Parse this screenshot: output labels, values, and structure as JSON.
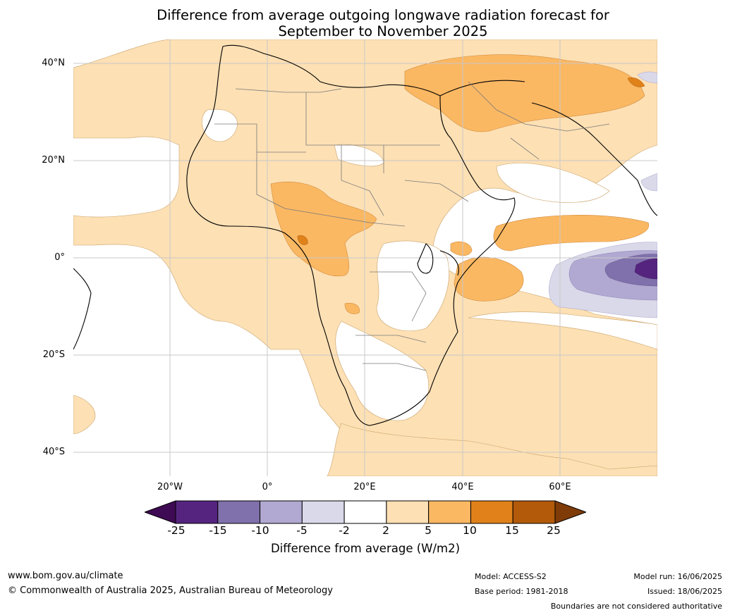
{
  "title_line1": "Difference from average outgoing longwave radiation forecast for",
  "title_line2": "September to November 2025",
  "lat_labels": [
    "40°N",
    "20°N",
    "0°",
    "20°S",
    "40°S"
  ],
  "lon_labels": [
    "20°W",
    "0°",
    "20°E",
    "40°E",
    "60°E"
  ],
  "colorbar": {
    "label": "Difference from average (W/m2)",
    "ticks": [
      "-25",
      "-15",
      "-10",
      "-5",
      "-2",
      "2",
      "5",
      "10",
      "15",
      "25"
    ],
    "colors": [
      "#3f0a54",
      "#55247f",
      "#8070ab",
      "#b1a9d1",
      "#d9d9ea",
      "#ffffff",
      "#fde0b4",
      "#fbb863",
      "#e0811a",
      "#b35a0a",
      "#7f3b08"
    ]
  },
  "footer": {
    "url": "www.bom.gov.au/climate",
    "copyright": "© Commonwealth of Australia 2025, Australian Bureau of Meteorology",
    "model": "Model: ACCESS-S2",
    "base_period": "Base period: 1981-2018",
    "model_run": "Model run: 16/06/2025",
    "issued": "Issued: 18/06/2025",
    "disclaimer": "Boundaries are not considered authoritative"
  }
}
